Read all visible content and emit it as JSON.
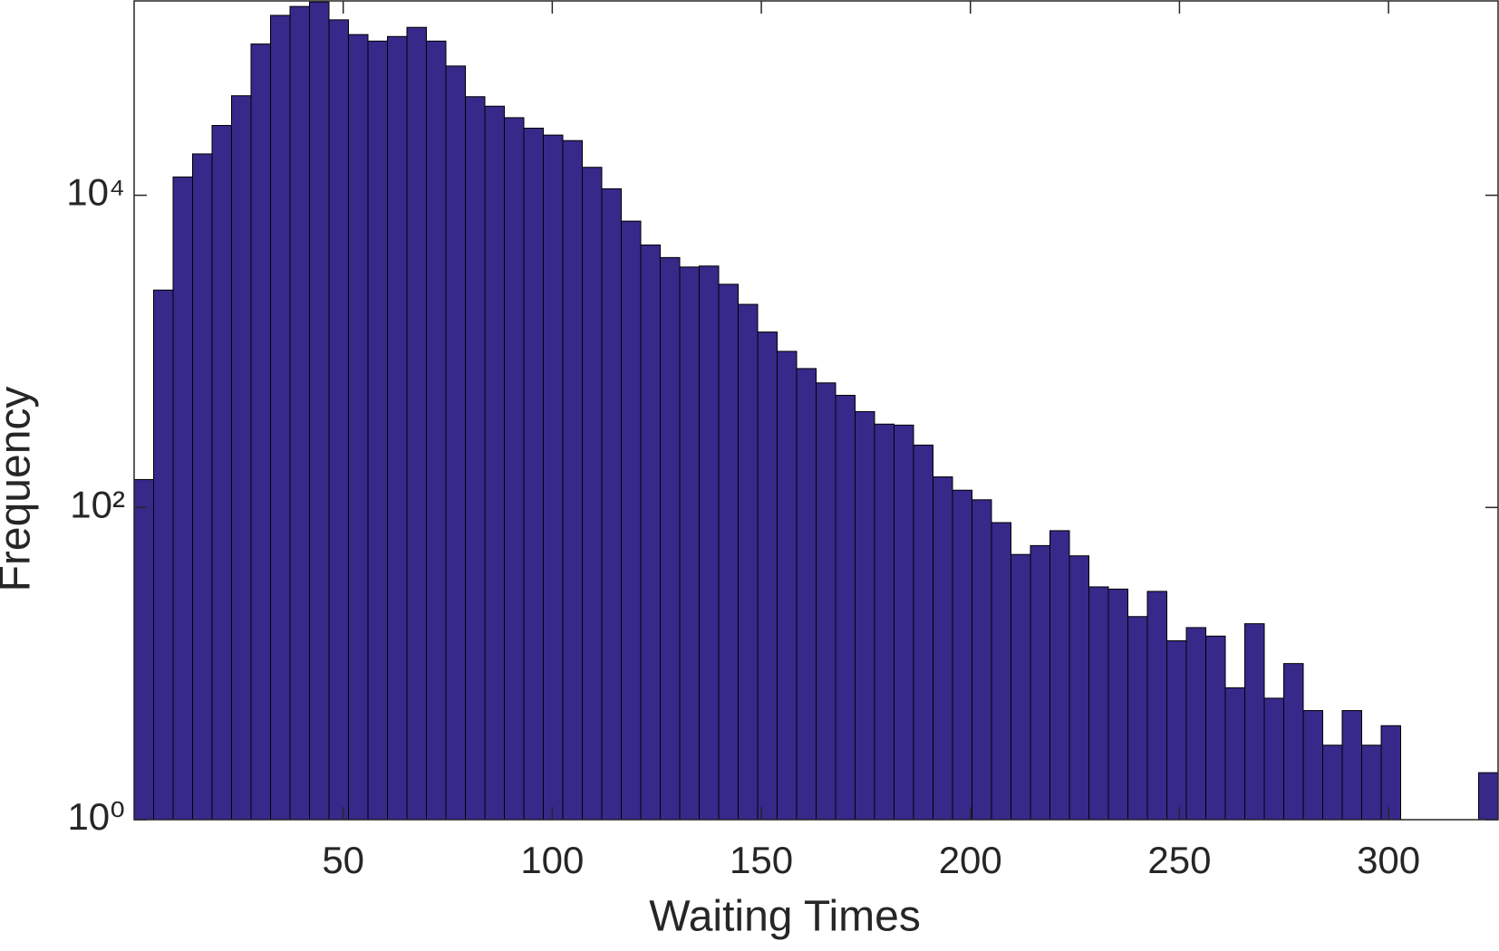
{
  "chart_data": {
    "type": "histogram",
    "xlabel": "Waiting Times",
    "ylabel": "Frequency",
    "bins": [
      0,
      4.66,
      9.32,
      13.98,
      18.64,
      23.3,
      27.96,
      32.62,
      37.28,
      41.94,
      46.6,
      51.26,
      55.92,
      60.58,
      65.24,
      69.9,
      74.56,
      79.22,
      83.88,
      88.54,
      93.2,
      97.86,
      102.52,
      107.18,
      111.84,
      116.5,
      121.16,
      125.82,
      130.48,
      135.14,
      139.8,
      144.46,
      149.12,
      153.78,
      158.44,
      163.1,
      167.76,
      172.42,
      177.08,
      181.74,
      186.4,
      191.06,
      195.72,
      200.38,
      205.04,
      209.7,
      214.36,
      219.02,
      223.68,
      228.34,
      233,
      237.66,
      242.32,
      246.98,
      251.64,
      256.3,
      260.96,
      265.62,
      270.28,
      274.94,
      279.6,
      284.26,
      288.92,
      293.58,
      298.24,
      302.9,
      307.56,
      312.22,
      316.88,
      321.54,
      326.2
    ],
    "values": [
      151,
      2470,
      13100,
      18400,
      28000,
      43400,
      93100,
      142000,
      162000,
      173000,
      133000,
      107000,
      97200,
      104000,
      119000,
      97200,
      67300,
      42800,
      37200,
      31400,
      26900,
      24300,
      22400,
      15100,
      11000,
      6830,
      4800,
      3990,
      3470,
      3520,
      2690,
      2000,
      1330,
      1000,
      776,
      628,
      523,
      411,
      342,
      337,
      251,
      157,
      129,
      112,
      80,
      50,
      57,
      71,
      49,
      31,
      30,
      20,
      29,
      14,
      17,
      15,
      7,
      18,
      6,
      10,
      5,
      3,
      5,
      3,
      4,
      0,
      0,
      0,
      0,
      2
    ],
    "color": "#36298a",
    "xlim": [
      0,
      326.2
    ],
    "xticks": [
      50,
      100,
      150,
      200,
      250,
      300
    ],
    "ylim": [
      1,
      175800
    ],
    "yscale": "log",
    "yticks": [
      {
        "value": 1,
        "label": "10⁰"
      },
      {
        "value": 100,
        "label": "10²"
      },
      {
        "value": 10000,
        "label": "10⁴"
      }
    ]
  }
}
